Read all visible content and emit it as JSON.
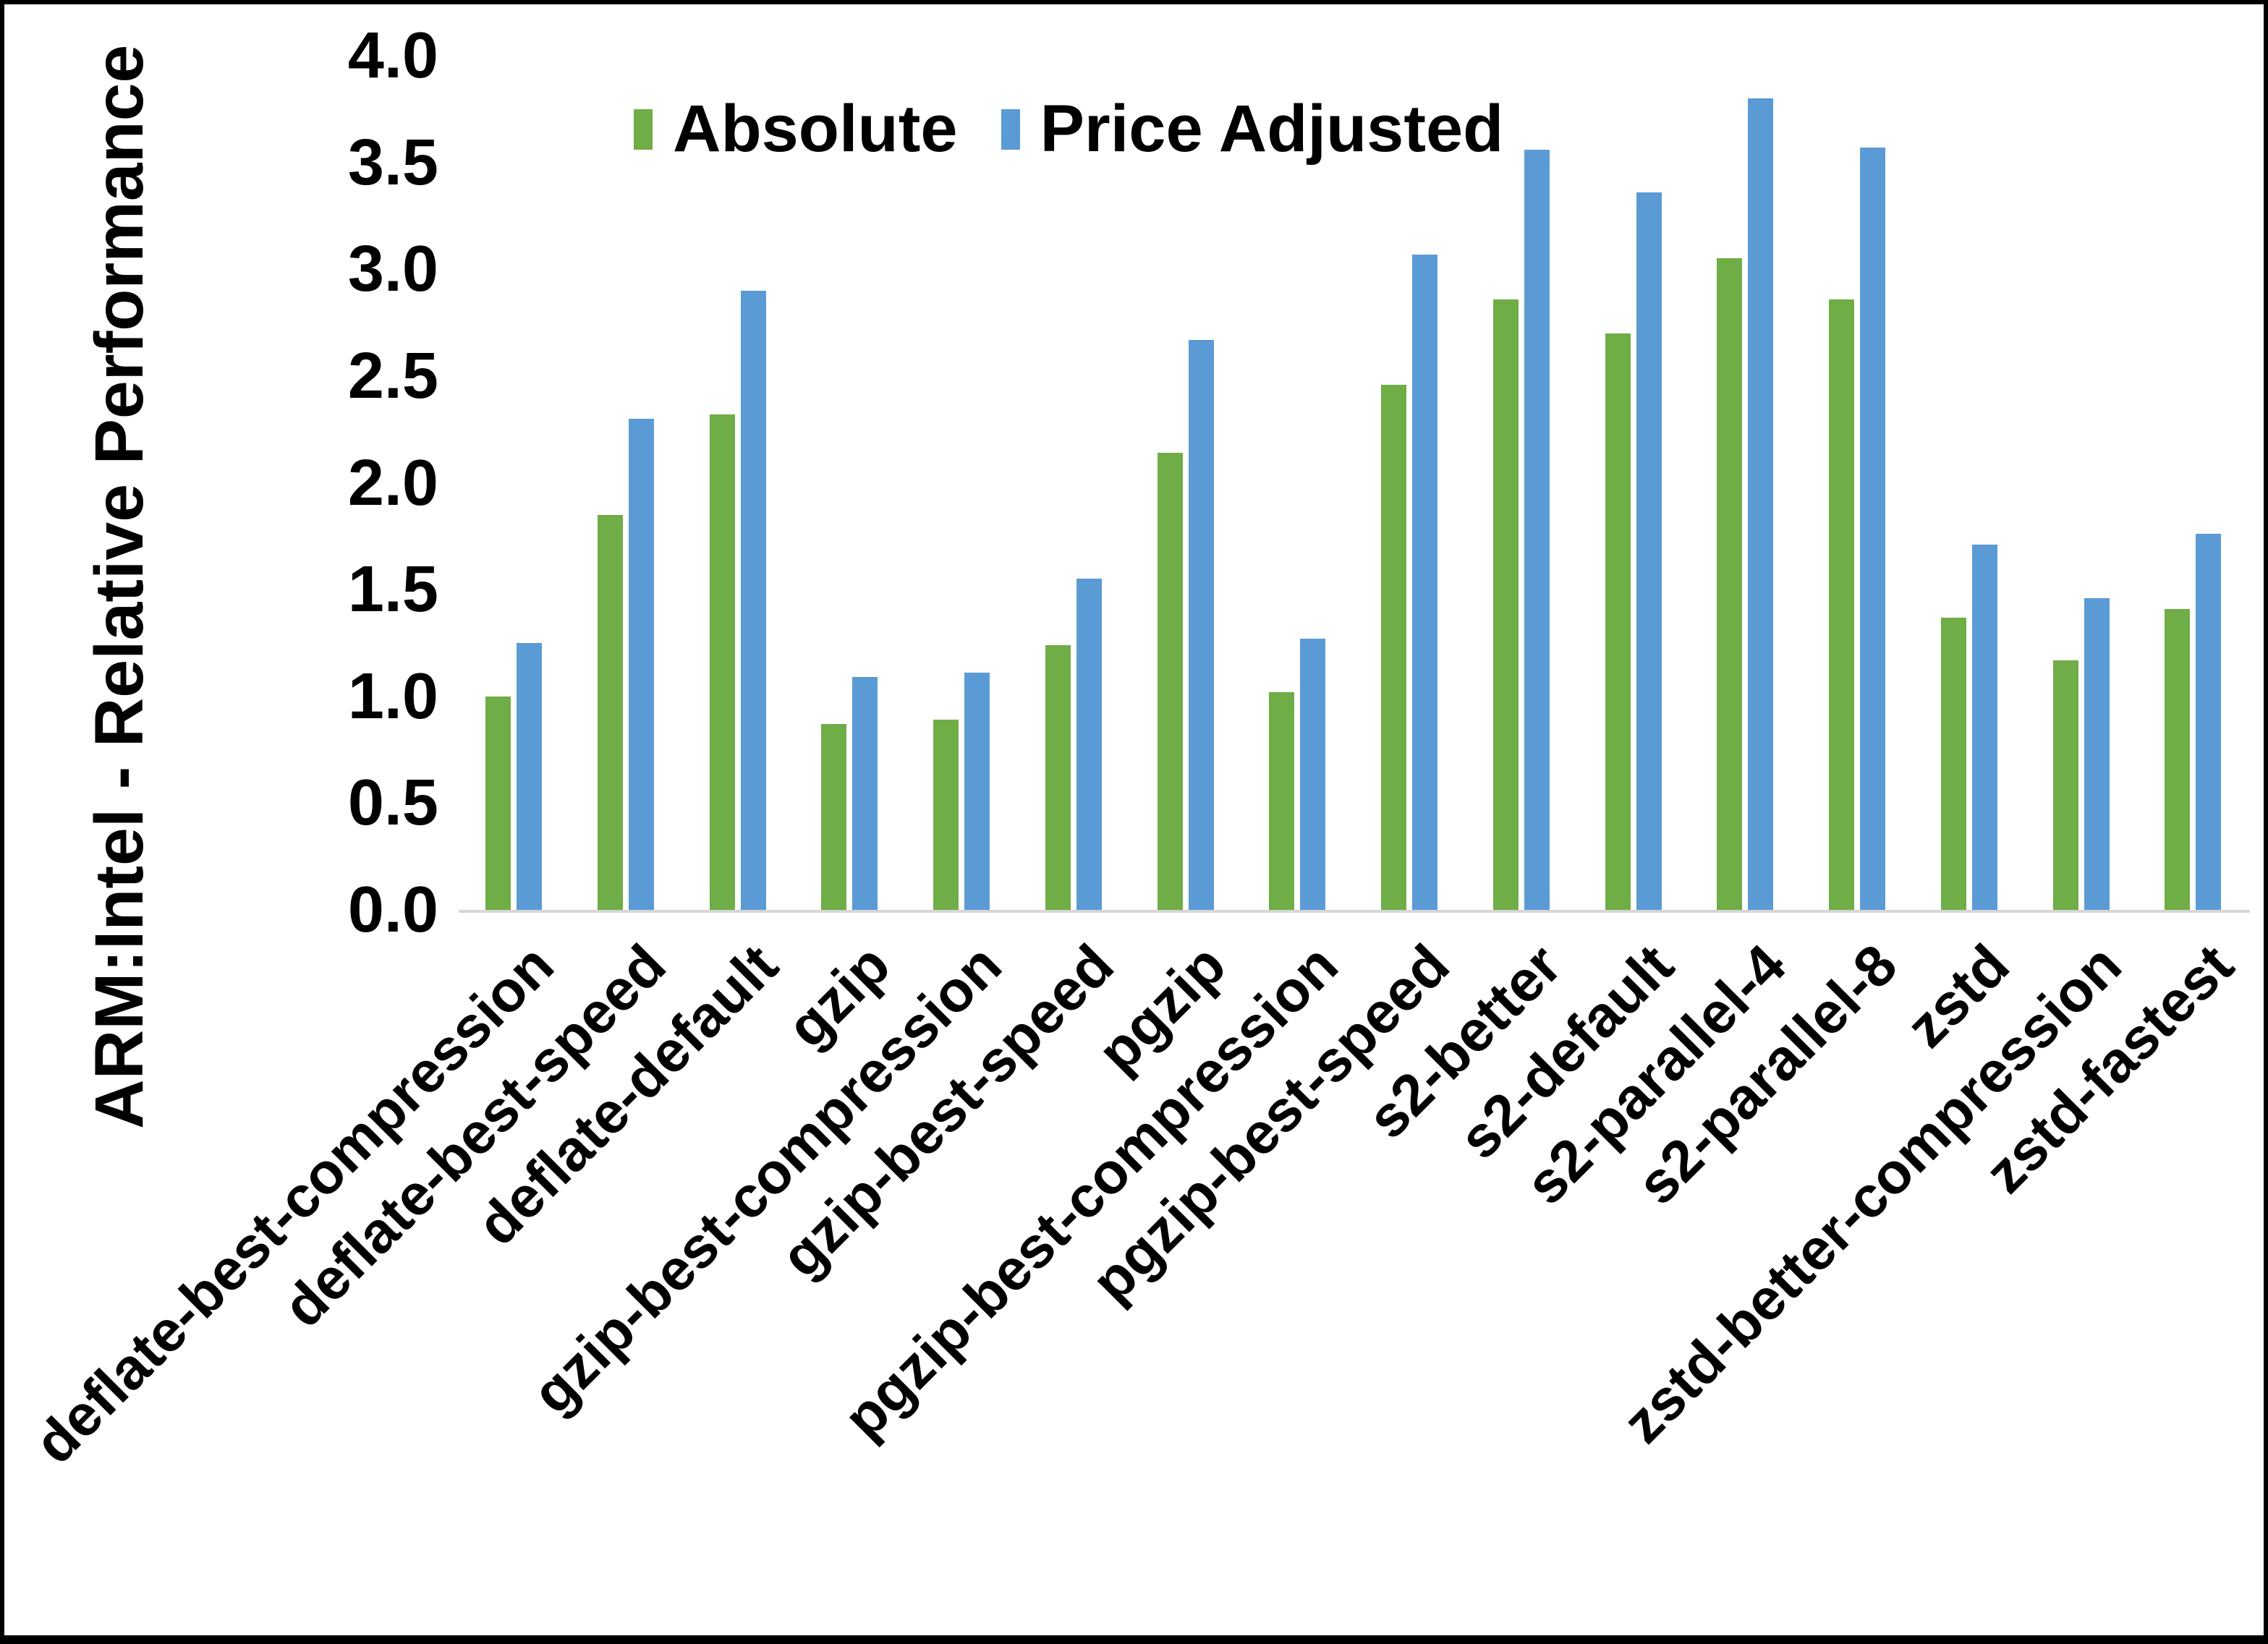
{
  "chart_data": {
    "type": "bar",
    "title": "",
    "ylabel": "ARM:Intel - Relative Performance",
    "xlabel": "",
    "ylim": [
      0.0,
      4.0
    ],
    "ytick_step": 0.5,
    "ytick_labels": [
      "0.0",
      "0.5",
      "1.0",
      "1.5",
      "2.0",
      "2.5",
      "3.0",
      "3.5",
      "4.0"
    ],
    "grid": false,
    "legend_position": "top-center",
    "categories": [
      "deflate-best-compression",
      "deflate-best-speed",
      "deflate-default",
      "gzip",
      "gzip-best-compression",
      "gzip-best-speed",
      "pgzip",
      "pgzip-best-compression",
      "pgzip-best-speed",
      "s2-better",
      "s2-default",
      "s2-parallel-4",
      "s2-parallel-8",
      "zstd",
      "zstd-better-compression",
      "zstd-fastest"
    ],
    "series": [
      {
        "name": "Absolute",
        "color": "#6fad47",
        "values": [
          1.0,
          1.85,
          2.32,
          0.87,
          0.89,
          1.24,
          2.14,
          1.02,
          2.46,
          2.86,
          2.7,
          3.05,
          2.86,
          1.37,
          1.17,
          1.41
        ]
      },
      {
        "name": "Price Adjusted",
        "color": "#5b9bd5",
        "values": [
          1.25,
          2.3,
          2.9,
          1.09,
          1.11,
          1.55,
          2.67,
          1.27,
          3.07,
          3.56,
          3.36,
          3.8,
          3.57,
          1.71,
          1.46,
          1.76
        ]
      }
    ],
    "axis_line_color": "#d6d6d6",
    "text_color": "#000000",
    "background_color": "#ffffff",
    "border_color": "#000000"
  }
}
